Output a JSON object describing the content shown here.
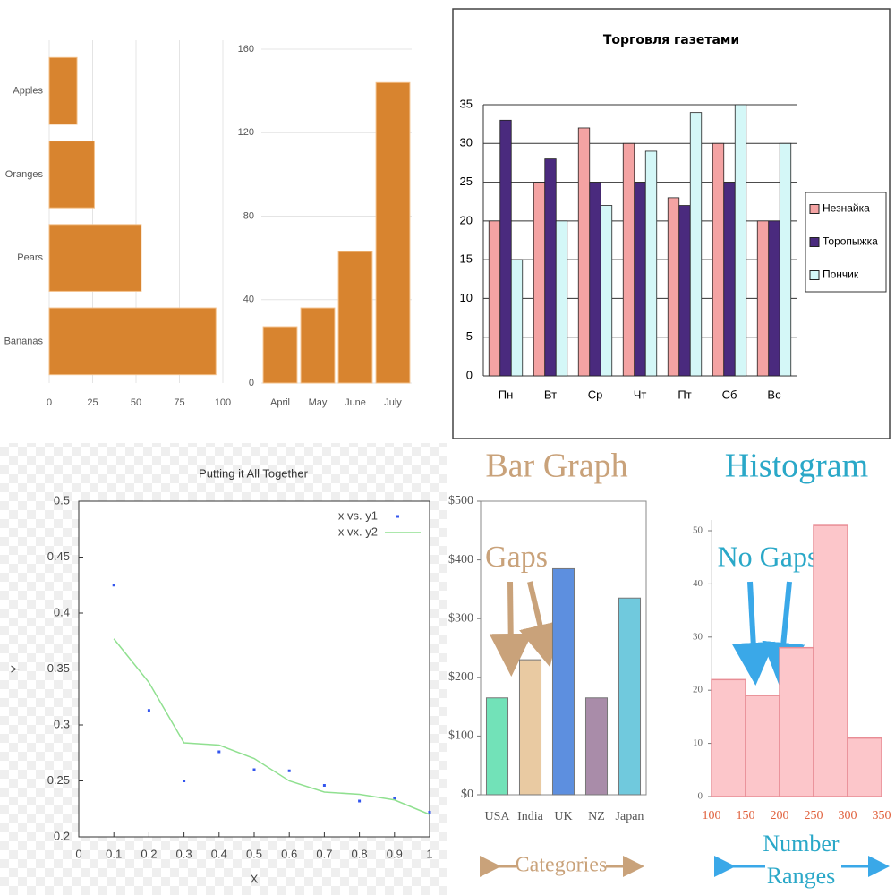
{
  "chart_data": [
    {
      "type": "bar",
      "horizontal": true,
      "categories": [
        "Apples",
        "Oranges",
        "Pears",
        "Bananas"
      ],
      "values": [
        16,
        26,
        53,
        96
      ],
      "color": "#d8842f",
      "xlim": [
        0,
        100
      ],
      "xticks": [
        0,
        25,
        50,
        75,
        100
      ],
      "grid": true
    },
    {
      "type": "bar",
      "categories": [
        "April",
        "May",
        "June",
        "July"
      ],
      "values": [
        27,
        36,
        63,
        144
      ],
      "color": "#d8842f",
      "ylim": [
        0,
        160
      ],
      "yticks": [
        0,
        40,
        80,
        120,
        160
      ],
      "grid": true
    },
    {
      "type": "bar",
      "title": "Торговля газетами",
      "categories": [
        "Пн",
        "Вт",
        "Ср",
        "Чт",
        "Пт",
        "Сб",
        "Вс"
      ],
      "series": [
        {
          "name": "Незнайка",
          "color": "#f4a3a3",
          "values": [
            20,
            25,
            32,
            30,
            23,
            30,
            20
          ]
        },
        {
          "name": "Торопыжка",
          "color": "#4a2a7e",
          "values": [
            33,
            28,
            25,
            25,
            22,
            25,
            20
          ]
        },
        {
          "name": "Пончик",
          "color": "#d4f7f7",
          "values": [
            15,
            20,
            22,
            29,
            34,
            35,
            30
          ]
        }
      ],
      "ylim": [
        0,
        35
      ],
      "yticks": [
        0,
        5,
        10,
        15,
        20,
        25,
        30,
        35
      ],
      "grid": true,
      "legend": "right"
    },
    {
      "type": "scatter",
      "title": "Putting it All Together",
      "x_label": "X",
      "y_label": "Y",
      "x": [
        0.1,
        0.2,
        0.3,
        0.4,
        0.5,
        0.6,
        0.7,
        0.8,
        0.9,
        1
      ],
      "series": [
        {
          "name": "x vs. y1",
          "color": "#3355ee",
          "style": "markers",
          "values": [
            0.425,
            0.313,
            0.25,
            0.276,
            0.26,
            0.259,
            0.246,
            0.232,
            0.234,
            0.222
          ]
        },
        {
          "name": "x vx. y2",
          "color": "#90e090",
          "style": "line",
          "values": [
            0.377,
            0.338,
            0.284,
            0.282,
            0.27,
            0.25,
            0.24,
            0.238,
            0.233,
            0.22
          ]
        }
      ],
      "xlim": [
        0,
        1
      ],
      "xticks": [
        0,
        0.1,
        0.2,
        0.3,
        0.4,
        0.5,
        0.6,
        0.7,
        0.8,
        0.9,
        1
      ],
      "ylim": [
        0.2,
        0.5
      ],
      "yticks": [
        0.2,
        0.25,
        0.3,
        0.35,
        0.4,
        0.45,
        0.5
      ],
      "legend": "upper right"
    },
    {
      "type": "bar",
      "title": "Bar Graph",
      "annotation": "Gaps",
      "x_label": "Categories",
      "categories": [
        "USA",
        "India",
        "UK",
        "NZ",
        "Japan"
      ],
      "values": [
        165,
        230,
        385,
        165,
        335
      ],
      "colors": [
        "#72e2b8",
        "#e9caa2",
        "#5d8fdf",
        "#a98ca9",
        "#70c9dd"
      ],
      "ylim": [
        0,
        500
      ],
      "yticks": [
        {
          "value": 0,
          "label": "$0"
        },
        {
          "value": 100,
          "label": "$100"
        },
        {
          "value": 200,
          "label": "$200"
        },
        {
          "value": 300,
          "label": "$300"
        },
        {
          "value": 400,
          "label": "$400"
        },
        {
          "value": 500,
          "label": "$500"
        }
      ]
    },
    {
      "type": "histogram",
      "title": "Histogram",
      "annotation": "No Gaps",
      "x_label": [
        "Number",
        "Ranges"
      ],
      "bins": [
        100,
        150,
        200,
        250,
        300,
        350
      ],
      "values": [
        22,
        19,
        28,
        51,
        11
      ],
      "color": "#fcc6ca",
      "xlim": [
        100,
        350
      ],
      "ylim": [
        0,
        50
      ],
      "yticks": [
        0,
        10,
        20,
        30,
        40,
        50
      ]
    }
  ]
}
